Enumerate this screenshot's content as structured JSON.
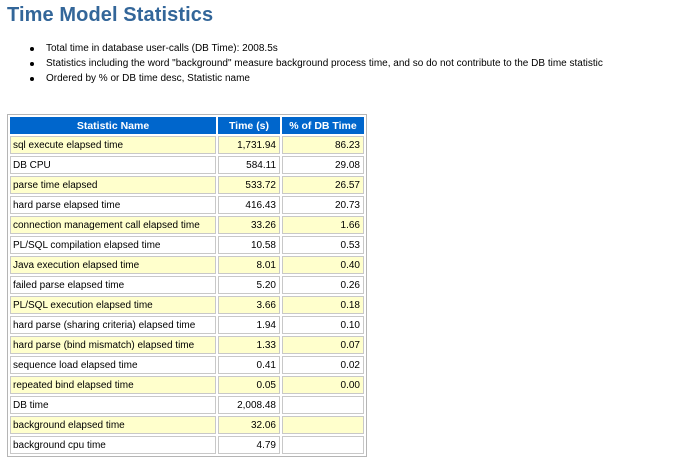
{
  "page": {
    "title": "Time Model Statistics"
  },
  "notes": [
    "Total time in database user-calls (DB Time): 2008.5s",
    "Statistics including the word \"background\" measure background process time, and so do not contribute to the DB time statistic",
    "Ordered by % or DB time desc, Statistic name"
  ],
  "table": {
    "headers": [
      "Statistic Name",
      "Time (s)",
      "% of DB Time"
    ],
    "rows": [
      {
        "name": "sql execute elapsed time",
        "time": "1,731.94",
        "pct": "86.23"
      },
      {
        "name": "DB CPU",
        "time": "584.11",
        "pct": "29.08"
      },
      {
        "name": "parse time elapsed",
        "time": "533.72",
        "pct": "26.57"
      },
      {
        "name": "hard parse elapsed time",
        "time": "416.43",
        "pct": "20.73"
      },
      {
        "name": "connection management call elapsed time",
        "time": "33.26",
        "pct": "1.66"
      },
      {
        "name": "PL/SQL compilation elapsed time",
        "time": "10.58",
        "pct": "0.53"
      },
      {
        "name": "Java execution elapsed time",
        "time": "8.01",
        "pct": "0.40"
      },
      {
        "name": "failed parse elapsed time",
        "time": "5.20",
        "pct": "0.26"
      },
      {
        "name": "PL/SQL execution elapsed time",
        "time": "3.66",
        "pct": "0.18"
      },
      {
        "name": "hard parse (sharing criteria) elapsed time",
        "time": "1.94",
        "pct": "0.10"
      },
      {
        "name": "hard parse (bind mismatch) elapsed time",
        "time": "1.33",
        "pct": "0.07"
      },
      {
        "name": "sequence load elapsed time",
        "time": "0.41",
        "pct": "0.02"
      },
      {
        "name": "repeated bind elapsed time",
        "time": "0.05",
        "pct": "0.00"
      },
      {
        "name": "DB time",
        "time": "2,008.48",
        "pct": ""
      },
      {
        "name": "background elapsed time",
        "time": "32.06",
        "pct": ""
      },
      {
        "name": "background cpu time",
        "time": "4.79",
        "pct": ""
      }
    ]
  },
  "colors": {
    "title": "#336699",
    "header_bg": "#0066cc",
    "header_text": "#ffffff",
    "row_highlight": "#ffffcc",
    "row_plain": "#ffffff"
  }
}
